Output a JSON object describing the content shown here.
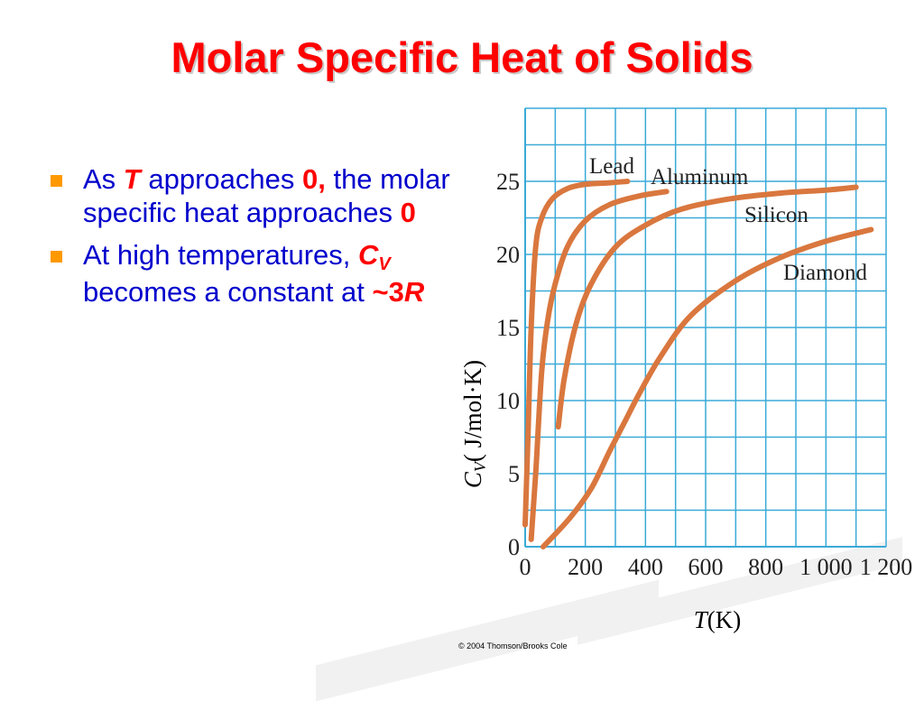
{
  "slide": {
    "title": "Molar Specific Heat of Solids",
    "copyright": "© 2004 Thomson/Brooks Cole",
    "bullets": [
      {
        "parts": [
          {
            "text": "As ",
            "emph": false
          },
          {
            "text": "T",
            "emph": true,
            "italic": true
          },
          {
            "text": "  approaches ",
            "emph": false
          },
          {
            "text": "0",
            "emph": true
          },
          {
            "text": ", ",
            "emph": true
          },
          {
            "text": "the molar specific heat approaches ",
            "emph": false
          },
          {
            "text": "0",
            "emph": true
          }
        ]
      },
      {
        "parts": [
          {
            "text": "At high temperatures, ",
            "emph": false
          },
          {
            "text": "C",
            "emph": true,
            "italic": true
          },
          {
            "text": "V",
            "emph": true,
            "italic": true,
            "sub": true
          },
          {
            "text": " becomes a constant at ",
            "emph": false
          },
          {
            "text": "~",
            "emph": true
          },
          {
            "text": "3",
            "emph": true
          },
          {
            "text": "R",
            "emph": true,
            "italic": true
          }
        ]
      }
    ]
  },
  "colors": {
    "title": "#ff0000",
    "body_text": "#0000cc",
    "emphasis": "#ff0000",
    "bullet": "#ff9900",
    "grid": "#3aaad8",
    "curve": "#d9773e",
    "label_text": "#222222"
  },
  "chart_data": {
    "type": "line",
    "xlabel_symbol": "T",
    "xlabel_unit": "(K)",
    "ylabel_symbol": "C",
    "ylabel_sub": "V",
    "ylabel_unit": "( J/mol·K)",
    "xlim": [
      0,
      1200
    ],
    "ylim": [
      0,
      30
    ],
    "xticks": [
      0,
      200,
      400,
      600,
      800,
      1000,
      1200
    ],
    "xtick_labels": [
      "0",
      "200",
      "400",
      "600",
      "800",
      "1 000",
      "1 200"
    ],
    "yticks": [
      0,
      5,
      10,
      15,
      20,
      25
    ],
    "ytick_labels": [
      "0",
      "5",
      "10",
      "15",
      "20",
      "25"
    ],
    "grid": true,
    "legend": "none",
    "series": [
      {
        "name": "Lead",
        "x": [
          0,
          10,
          20,
          35,
          55,
          90,
          140,
          200,
          280,
          340
        ],
        "y": [
          1.5,
          8,
          15,
          20.5,
          22.5,
          23.8,
          24.5,
          24.8,
          24.9,
          25.0
        ]
      },
      {
        "name": "Aluminum",
        "x": [
          20,
          35,
          55,
          75,
          100,
          140,
          200,
          280,
          380,
          470
        ],
        "y": [
          0.5,
          5,
          12,
          15.5,
          18,
          20.5,
          22.3,
          23.4,
          24.0,
          24.3
        ]
      },
      {
        "name": "Silicon",
        "x": [
          110,
          130,
          170,
          220,
          300,
          400,
          520,
          680,
          850,
          1000,
          1100
        ],
        "y": [
          8.2,
          11.5,
          15.3,
          18,
          20.5,
          22,
          23.1,
          23.8,
          24.2,
          24.4,
          24.6
        ]
      },
      {
        "name": "Diamond",
        "x": [
          60,
          150,
          220,
          280,
          330,
          380,
          450,
          550,
          700,
          850,
          1000,
          1150
        ],
        "y": [
          0,
          2,
          4,
          6.5,
          8.5,
          10.5,
          13,
          15.8,
          18.2,
          19.8,
          20.9,
          21.7
        ]
      }
    ]
  }
}
